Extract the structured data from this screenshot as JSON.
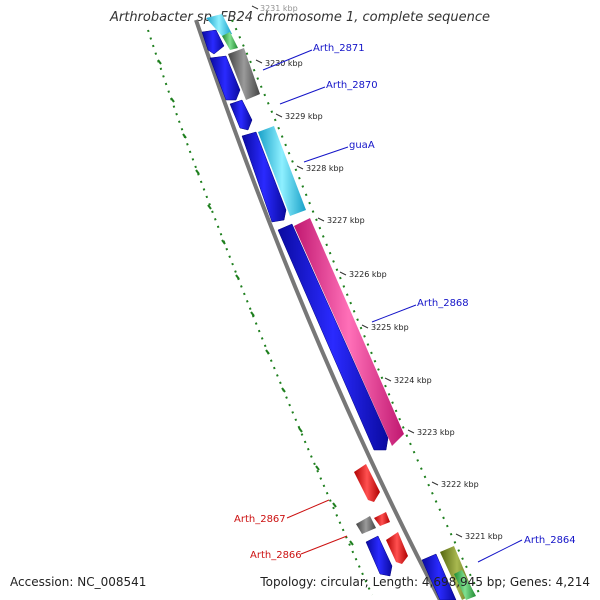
{
  "title": "Arthrobacter sp. FB24 chromosome 1, complete sequence",
  "accession": "Accession: NC_008541",
  "topology": "Topology: circular; Length: 4,698,945 bp; Genes: 4,214",
  "colors": {
    "backbone": "#777777",
    "gc_dots": "#1e7f1e",
    "forward_label": "#1414c8",
    "reverse_label": "#cc1111",
    "blue_gene": "#1a10e0",
    "cyan_gene": "#28c8e8",
    "gray_gene": "#6a6a6a",
    "pink_gene": "#ee2a8a",
    "red_gene": "#ee1111",
    "olive_gene": "#7a8c20",
    "green_gene": "#3cb44b"
  },
  "tick_labels": [
    "3231 kbp",
    "3230 kbp",
    "3229 kbp",
    "3228 kbp",
    "3227 kbp",
    "3226 kbp",
    "3225 kbp",
    "3224 kbp",
    "3223 kbp",
    "3222 kbp",
    "3221 kbp"
  ],
  "gene_labels": [
    {
      "text": "Arth_2871",
      "strand": "forward"
    },
    {
      "text": "Arth_2870",
      "strand": "forward"
    },
    {
      "text": "guaA",
      "strand": "forward"
    },
    {
      "text": "Arth_2868",
      "strand": "forward"
    },
    {
      "text": "Arth_2867",
      "strand": "reverse"
    },
    {
      "text": "Arth_2866",
      "strand": "reverse"
    },
    {
      "text": "Arth_2864",
      "strand": "forward"
    }
  ]
}
